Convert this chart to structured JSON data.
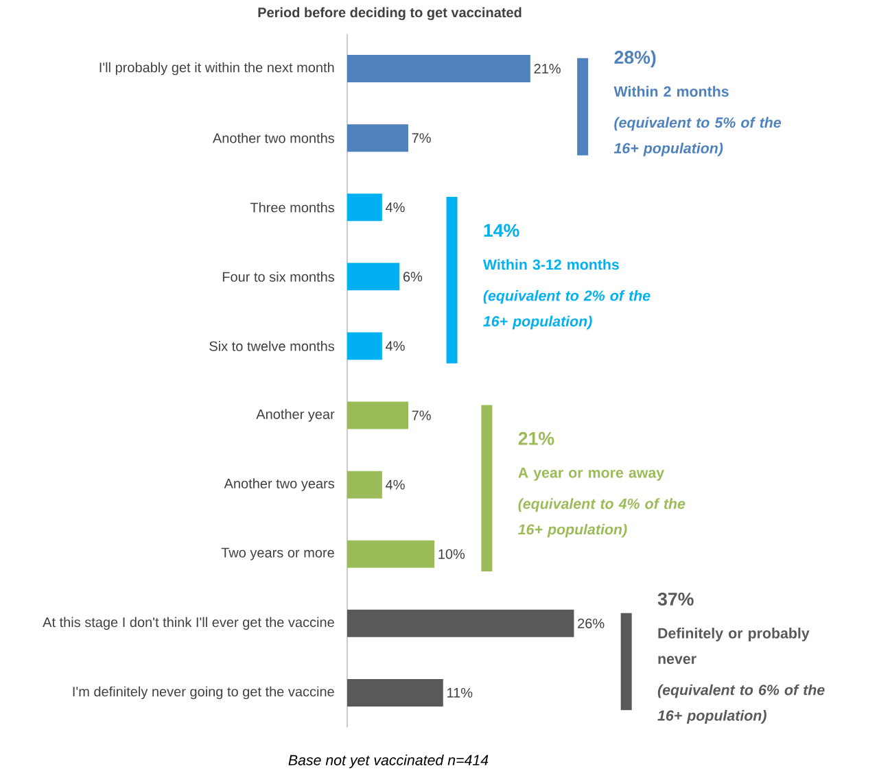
{
  "chart_data": {
    "type": "bar",
    "orientation": "horizontal",
    "title": "Period before deciding to get vaccinated",
    "categories": [
      "I'll probably get it within the next month",
      "Another two months",
      "Three months",
      "Four to six months",
      "Six to twelve months",
      "Another year",
      "Another two years",
      "Two years or more",
      "At this stage I don't think I'll ever get the vaccine",
      "I'm definitely never going to get the vaccine"
    ],
    "values": [
      21,
      7,
      4,
      6,
      4,
      7,
      4,
      10,
      26,
      11
    ],
    "colors": [
      "#4f81bd",
      "#4f81bd",
      "#00b0f0",
      "#00b0f0",
      "#00b0f0",
      "#9bbb59",
      "#9bbb59",
      "#9bbb59",
      "#595959",
      "#595959"
    ],
    "value_labels": [
      "21%",
      "7%",
      "4%",
      "6%",
      "4%",
      "7%",
      "4%",
      "10%",
      "26%",
      "11%"
    ],
    "annotations": [
      "28%)",
      "Within 2 months",
      "(equivalent to 5% of the 16+ population)",
      "14%",
      "Within 3-12 months",
      "(equivalent to 2% of the 16+ population)",
      "21%",
      "A year or more away",
      "(equivalent to 4% of the 16+ population)",
      "37%",
      "Definitely or probably never",
      "(equivalent to 6% of the 16+ population)",
      "Base not yet vaccinated n=414"
    ]
  }
}
